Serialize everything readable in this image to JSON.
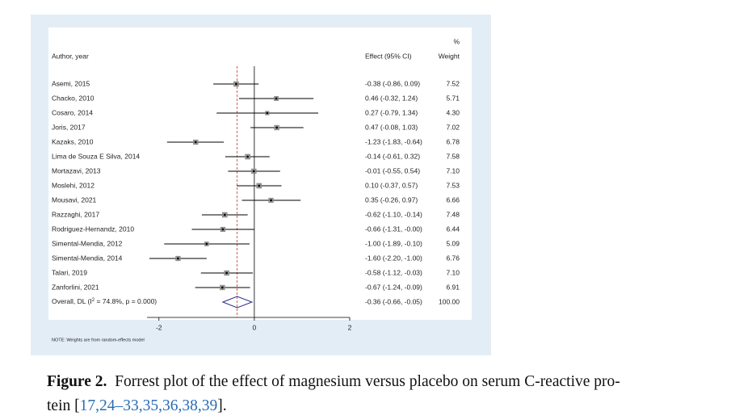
{
  "figure": {
    "header": {
      "study": "Author, year",
      "effect": "Effect (95% CI)",
      "weight_pct": "%",
      "weight": "Weight"
    },
    "studies": [
      {
        "name": "Asemi, 2015",
        "est": -0.38,
        "lo": -0.86,
        "hi": 0.09,
        "ci_label": "-0.38 (-0.86, 0.09)",
        "weight": 7.52,
        "weight_label": "7.52"
      },
      {
        "name": "Chacko, 2010",
        "est": 0.46,
        "lo": -0.32,
        "hi": 1.24,
        "ci_label": "0.46 (-0.32, 1.24)",
        "weight": 5.71,
        "weight_label": "5.71"
      },
      {
        "name": "Cosaro, 2014",
        "est": 0.27,
        "lo": -0.79,
        "hi": 1.34,
        "ci_label": "0.27 (-0.79, 1.34)",
        "weight": 4.3,
        "weight_label": "4.30"
      },
      {
        "name": "Joris, 2017",
        "est": 0.47,
        "lo": -0.08,
        "hi": 1.03,
        "ci_label": "0.47 (-0.08, 1.03)",
        "weight": 7.02,
        "weight_label": "7.02"
      },
      {
        "name": "Kazaks, 2010",
        "est": -1.23,
        "lo": -1.83,
        "hi": -0.64,
        "ci_label": "-1.23 (-1.83, -0.64)",
        "weight": 6.78,
        "weight_label": "6.78"
      },
      {
        "name": "Lima de Souza E Silva, 2014",
        "est": -0.14,
        "lo": -0.61,
        "hi": 0.32,
        "ci_label": "-0.14 (-0.61, 0.32)",
        "weight": 7.58,
        "weight_label": "7.58"
      },
      {
        "name": "Mortazavi, 2013",
        "est": -0.01,
        "lo": -0.55,
        "hi": 0.54,
        "ci_label": "-0.01 (-0.55, 0.54)",
        "weight": 7.1,
        "weight_label": "7.10"
      },
      {
        "name": "Moslehi, 2012",
        "est": 0.1,
        "lo": -0.37,
        "hi": 0.57,
        "ci_label": "0.10 (-0.37, 0.57)",
        "weight": 7.53,
        "weight_label": "7.53"
      },
      {
        "name": "Mousavi, 2021",
        "est": 0.35,
        "lo": -0.26,
        "hi": 0.97,
        "ci_label": "0.35 (-0.26, 0.97)",
        "weight": 6.66,
        "weight_label": "6.66"
      },
      {
        "name": "Razzaghi, 2017",
        "est": -0.62,
        "lo": -1.1,
        "hi": -0.14,
        "ci_label": "-0.62 (-1.10, -0.14)",
        "weight": 7.48,
        "weight_label": "7.48"
      },
      {
        "name": "Rodriguez-Hernandz, 2010",
        "est": -0.66,
        "lo": -1.31,
        "hi": 0,
        "ci_label": "-0.66 (-1.31, -0.00)",
        "weight": 6.44,
        "weight_label": "6.44"
      },
      {
        "name": "Simental-Mendia, 2012",
        "est": -1.0,
        "lo": -1.89,
        "hi": -0.1,
        "ci_label": "-1.00 (-1.89, -0.10)",
        "weight": 5.09,
        "weight_label": "5.09"
      },
      {
        "name": "Simental-Mendia, 2014",
        "est": -1.6,
        "lo": -2.2,
        "hi": -1.0,
        "ci_label": "-1.60 (-2.20, -1.00)",
        "weight": 6.76,
        "weight_label": "6.76"
      },
      {
        "name": "Talari, 2019",
        "est": -0.58,
        "lo": -1.12,
        "hi": -0.03,
        "ci_label": "-0.58 (-1.12, -0.03)",
        "weight": 7.1,
        "weight_label": "7.10"
      },
      {
        "name": "Zanforlini, 2021",
        "est": -0.67,
        "lo": -1.24,
        "hi": -0.09,
        "ci_label": "-0.67 (-1.24, -0.09)",
        "weight": 6.91,
        "weight_label": "6.91"
      }
    ],
    "overall": {
      "label_pre": "Overall, DL (I",
      "label_sup": "2",
      "label_post": " = 74.8%, p = 0.000)",
      "est": -0.36,
      "lo": -0.66,
      "hi": -0.05,
      "ci_label": "-0.36 (-0.66, -0.05)",
      "weight": {
        "value": 100,
        "label": "100.00"
      }
    },
    "xlim": [
      -2.25,
      2
    ],
    "xticks": [
      -2,
      0,
      2
    ],
    "note": "NOTE: Weights are from random-effects model"
  },
  "caption": {
    "label": "Figure 2.",
    "line1": "Forrest plot of the effect of magnesium versus placebo on serum C-reactive pro-",
    "line2": "tein [",
    "refs": "17,24–33,35,36,38,39",
    "end": "]."
  }
}
